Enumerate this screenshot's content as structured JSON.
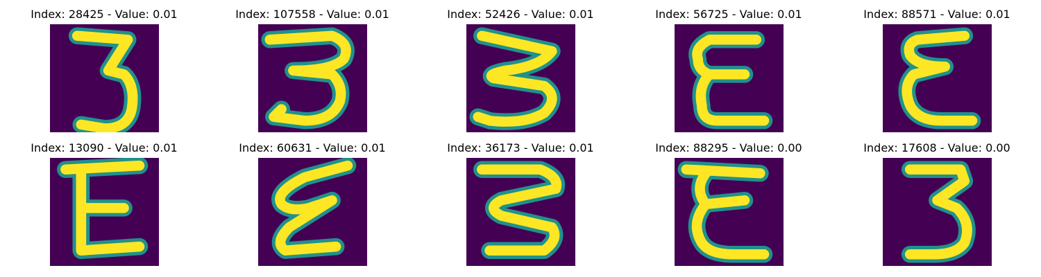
{
  "figure": {
    "background": "#ffffff",
    "colormap": {
      "low": "#440154",
      "mid": "#21918c",
      "high": "#fde725"
    }
  },
  "panels": [
    {
      "title": "Index: 28425 - Value: 0.01",
      "glyph": "3"
    },
    {
      "title": "Index: 107558 - Value: 0.01",
      "glyph": "3"
    },
    {
      "title": "Index: 52426 - Value: 0.01",
      "glyph": "3"
    },
    {
      "title": "Index: 56725 - Value: 0.01",
      "glyph": "E"
    },
    {
      "title": "Index: 88571 - Value: 0.01",
      "glyph": "E"
    },
    {
      "title": "Index: 13090 - Value: 0.01",
      "glyph": "E"
    },
    {
      "title": "Index: 60631 - Value: 0.01",
      "glyph": "E"
    },
    {
      "title": "Index: 36173 - Value: 0.01",
      "glyph": "3"
    },
    {
      "title": "Index: 88295 - Value: 0.00",
      "glyph": "E"
    },
    {
      "title": "Index: 17608 - Value: 0.00",
      "glyph": "3"
    }
  ]
}
